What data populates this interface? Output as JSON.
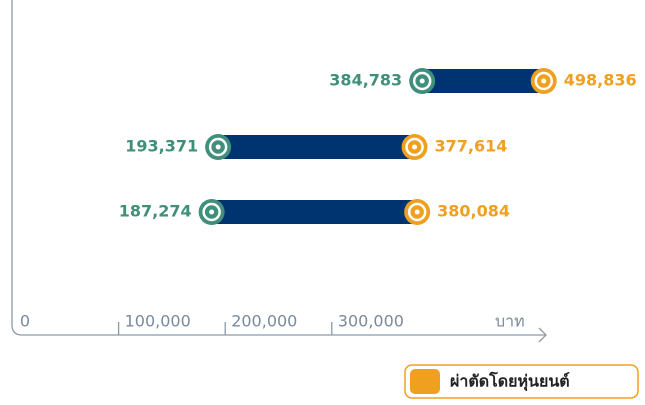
{
  "chart_data": {
    "type": "dumbbell",
    "x_label": "บาท",
    "xlim": [
      0,
      500000
    ],
    "xticks": [
      0,
      {
        "value": 100000,
        "label": "100,000"
      },
      {
        "value": 200000,
        "label": "200,000"
      },
      {
        "value": 300000,
        "label": "300,000"
      }
    ],
    "bar_color": "#003471",
    "series": [
      {
        "color": "#3f8f7a",
        "values": [
          384783,
          193371,
          187274
        ],
        "value_labels": [
          "384,783",
          "193,371",
          "187,274"
        ]
      },
      {
        "name": "ผ่าตัดโดยหุ่นยนต์",
        "color": "#f0a020",
        "values": [
          498836,
          377614,
          380084
        ],
        "value_labels": [
          "498,836",
          "377,614",
          "380,084"
        ]
      }
    ],
    "legend": "bottom-right"
  }
}
